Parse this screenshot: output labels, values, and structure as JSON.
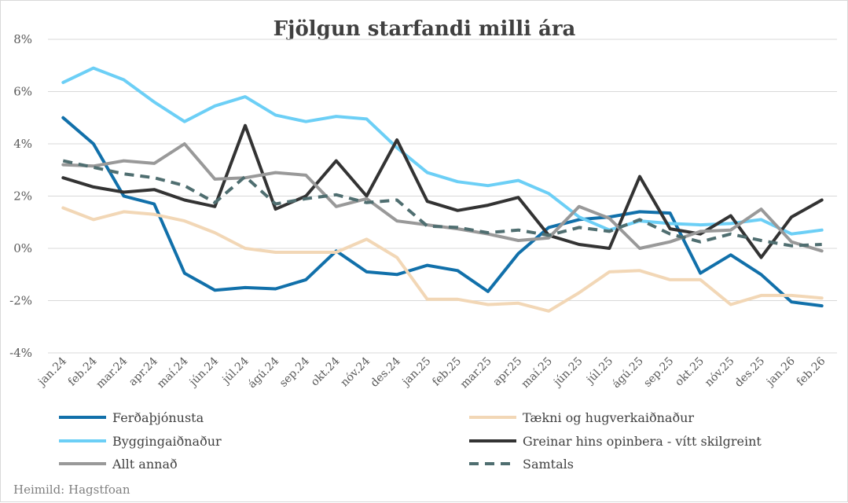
{
  "chart_data": {
    "type": "line",
    "title": "Fjölgun starfandi milli ára",
    "source": "Heimild: Hagstfoan",
    "xlabel": "",
    "ylabel": "",
    "ylim": [
      -4,
      8
    ],
    "yticks": [
      -4,
      -2,
      0,
      2,
      4,
      6,
      8
    ],
    "ytick_labels": [
      "-4%",
      "-2%",
      "0%",
      "2%",
      "4%",
      "6%",
      "8%"
    ],
    "grid": true,
    "legend_position": "bottom",
    "categories": [
      "jan.24",
      "feb.24",
      "mar.24",
      "apr.24",
      "maí.24",
      "jún.24",
      "júl.24",
      "ágú.24",
      "sep.24",
      "okt.24",
      "nóv.24",
      "des.24",
      "jan.25",
      "feb.25",
      "mar.25",
      "apr.25",
      "maí.25",
      "jún.25",
      "júl.25",
      "ágú.25",
      "sep.25",
      "okt.25",
      "nóv.25",
      "des.25",
      "jan.26",
      "feb.26"
    ],
    "series": [
      {
        "name": "Ferðaþjónusta",
        "color": "#1170aa",
        "dash": "solid",
        "values": [
          5.0,
          4.0,
          2.0,
          1.7,
          -0.95,
          -1.6,
          -1.5,
          -1.55,
          -1.2,
          -0.1,
          -0.9,
          -1.0,
          -0.65,
          -0.85,
          -1.65,
          -0.2,
          0.8,
          1.1,
          1.2,
          1.4,
          1.35,
          -0.95,
          -0.25,
          -1.0,
          -2.05,
          -2.2
        ]
      },
      {
        "name": "Tækni og hugverkaiðnaður",
        "color": "#f2d7b6",
        "dash": "solid",
        "values": [
          1.55,
          1.1,
          1.4,
          1.3,
          1.05,
          0.6,
          0.0,
          -0.15,
          -0.15,
          -0.15,
          0.35,
          -0.35,
          -1.95,
          -1.95,
          -2.15,
          -2.1,
          -2.4,
          -1.7,
          -0.9,
          -0.85,
          -1.2,
          -1.2,
          -2.15,
          -1.8,
          -1.8,
          -1.9
        ]
      },
      {
        "name": "Byggingaiðnaður",
        "color": "#6ccff6",
        "dash": "solid",
        "values": [
          6.35,
          6.9,
          6.45,
          5.6,
          4.85,
          5.45,
          5.8,
          5.1,
          4.85,
          5.05,
          4.95,
          3.85,
          2.9,
          2.55,
          2.4,
          2.6,
          2.1,
          1.2,
          0.7,
          1.05,
          0.95,
          0.9,
          0.95,
          1.1,
          0.55,
          0.7
        ]
      },
      {
        "name": "Greinar hins opinbera - vítt skilgreint",
        "color": "#333333",
        "dash": "solid",
        "values": [
          2.7,
          2.35,
          2.15,
          2.25,
          1.85,
          1.6,
          4.7,
          1.5,
          2.0,
          3.35,
          2.0,
          4.15,
          1.8,
          1.45,
          1.65,
          1.95,
          0.5,
          0.15,
          0.0,
          2.75,
          0.75,
          0.55,
          1.25,
          -0.35,
          1.2,
          1.85
        ]
      },
      {
        "name": "Allt annað",
        "color": "#999999",
        "dash": "solid",
        "values": [
          3.2,
          3.15,
          3.35,
          3.25,
          4.0,
          2.65,
          2.7,
          2.9,
          2.8,
          1.6,
          1.9,
          1.05,
          0.9,
          0.75,
          0.55,
          0.3,
          0.4,
          1.6,
          1.15,
          0.0,
          0.25,
          0.65,
          0.7,
          1.5,
          0.25,
          -0.1
        ]
      },
      {
        "name": "Samtals",
        "color": "#4f6e70",
        "dash": "dashed",
        "values": [
          3.35,
          3.1,
          2.85,
          2.7,
          2.4,
          1.75,
          2.75,
          1.7,
          1.9,
          2.05,
          1.75,
          1.85,
          0.85,
          0.8,
          0.6,
          0.7,
          0.5,
          0.8,
          0.65,
          1.1,
          0.55,
          0.25,
          0.55,
          0.3,
          0.1,
          0.15
        ]
      }
    ]
  }
}
